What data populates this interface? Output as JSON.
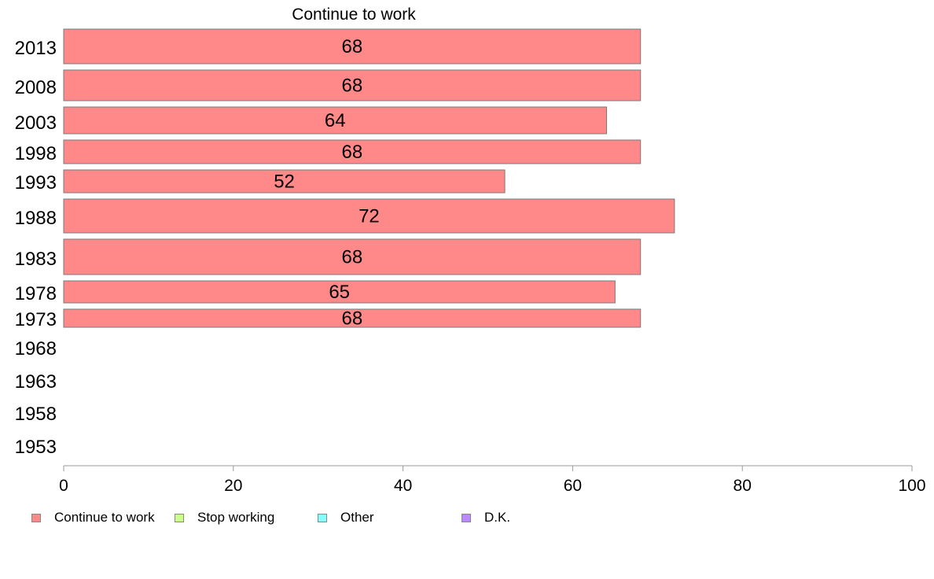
{
  "chart_data": {
    "type": "bar",
    "orientation": "horizontal",
    "title": "Continue to work",
    "categories": [
      "2013",
      "2008",
      "2003",
      "1998",
      "1993",
      "1988",
      "1983",
      "1978",
      "1973",
      "1968",
      "1963",
      "1958",
      "1953"
    ],
    "series": [
      {
        "name": "Continue to work",
        "color": "#ff8888",
        "values": [
          68,
          68,
          64,
          68,
          52,
          72,
          68,
          65,
          68,
          null,
          null,
          null,
          null
        ],
        "data_labels": [
          "68",
          "68",
          "64",
          "68",
          "52",
          "72",
          "68",
          "65",
          "68",
          "",
          "",
          "",
          ""
        ]
      }
    ],
    "xlim": [
      0,
      100
    ],
    "x_ticks": [
      "0",
      "20",
      "40",
      "60",
      "80",
      "100"
    ],
    "xlabel": "",
    "ylabel": "",
    "grid": false,
    "legend_position": "bottom-left"
  },
  "legend": [
    {
      "label": "Continue to work",
      "color": "#ff8888"
    },
    {
      "label": "Stop working",
      "color": "#ccff88"
    },
    {
      "label": "Other",
      "color": "#88ffff"
    },
    {
      "label": "D.K.",
      "color": "#bb88ff"
    }
  ]
}
